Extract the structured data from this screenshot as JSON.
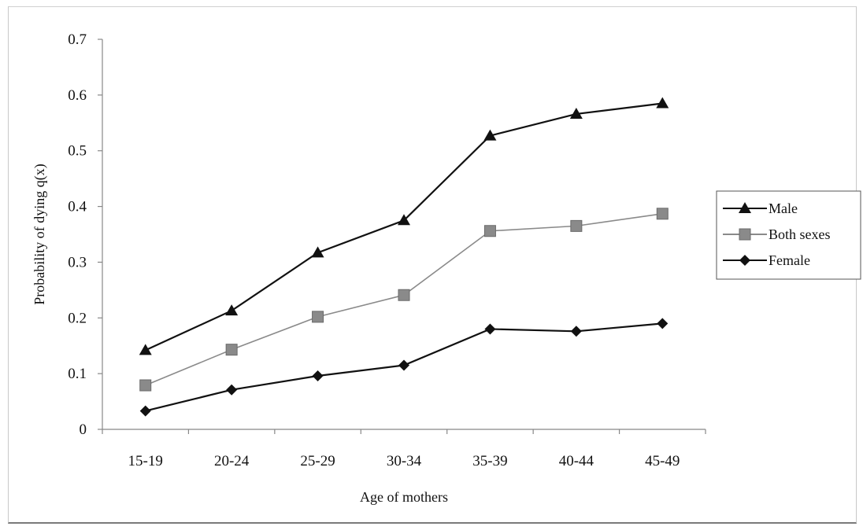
{
  "chart_data": {
    "type": "line",
    "categories": [
      "15-19",
      "20-24",
      "25-29",
      "30-34",
      "35-39",
      "40-44",
      "45-49"
    ],
    "series": [
      {
        "name": "Male",
        "marker": "triangle",
        "color": "#111111",
        "values": [
          0.142,
          0.213,
          0.317,
          0.375,
          0.527,
          0.566,
          0.585
        ]
      },
      {
        "name": "Both sexes",
        "marker": "square",
        "color": "#8a8a8a",
        "values": [
          0.079,
          0.143,
          0.202,
          0.241,
          0.356,
          0.365,
          0.387
        ]
      },
      {
        "name": "Female",
        "marker": "diamond",
        "color": "#111111",
        "values": [
          0.033,
          0.071,
          0.096,
          0.115,
          0.18,
          0.176,
          0.19
        ]
      }
    ],
    "title": "",
    "xlabel": "Age of mothers",
    "ylabel": "Probability of dying q(x)",
    "ylim": [
      0,
      0.7
    ],
    "yticks": [
      "0",
      "0.1",
      "0.2",
      "0.3",
      "0.4",
      "0.5",
      "0.6",
      "0.7"
    ],
    "grid": false,
    "legend_position": "right"
  }
}
